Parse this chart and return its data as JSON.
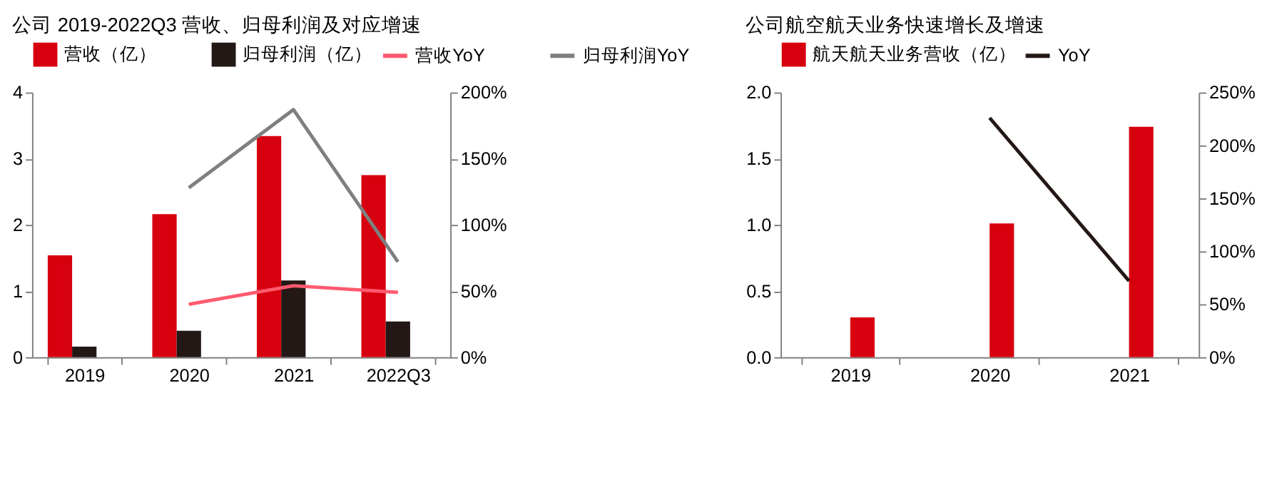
{
  "chart_data": [
    {
      "type": "bar",
      "title": "公司 2019-2022Q3 营收、归母利润及对应增速",
      "categories": [
        "2019",
        "2020",
        "2021",
        "2022Q3"
      ],
      "ylim": [
        0,
        4
      ],
      "yticks": [
        0,
        1,
        2,
        3,
        4
      ],
      "y2lim": [
        0,
        200
      ],
      "y2ticks": [
        {
          "value": 0,
          "label": "0%"
        },
        {
          "value": 50,
          "label": "50%"
        },
        {
          "value": 100,
          "label": "100%"
        },
        {
          "value": 150,
          "label": "150%"
        },
        {
          "value": 200,
          "label": "200%"
        }
      ],
      "legend": "top",
      "grid": false,
      "series": [
        {
          "name": "营收（亿）",
          "color": "#d7000f",
          "values": [
            1.54,
            2.16,
            3.34,
            2.75
          ]
        },
        {
          "name": "归母利润（亿）",
          "color": "#231815",
          "values": [
            0.16,
            0.4,
            1.16,
            0.54
          ]
        },
        {
          "name": "营收YoY",
          "type": "line",
          "axis": "y2",
          "color": "#ff5a6e",
          "values": [
            null,
            40,
            54,
            49
          ]
        },
        {
          "name": "归母利润YoY",
          "type": "line",
          "axis": "y2",
          "color": "#7f7f7f",
          "values": [
            null,
            128,
            187,
            72
          ]
        }
      ]
    },
    {
      "type": "bar",
      "title": "公司航空航天业务快速增长及增速",
      "categories": [
        "2019",
        "2020",
        "2021"
      ],
      "ylim": [
        0,
        2
      ],
      "yticks": [
        {
          "value": 0,
          "label": "0.0"
        },
        {
          "value": 0.5,
          "label": "0.5"
        },
        {
          "value": 1,
          "label": "1.0"
        },
        {
          "value": 1.5,
          "label": "1.5"
        },
        {
          "value": 2,
          "label": "2.0"
        }
      ],
      "y2lim": [
        0,
        250
      ],
      "y2ticks": [
        {
          "value": 0,
          "label": "0%"
        },
        {
          "value": 50,
          "label": "50%"
        },
        {
          "value": 100,
          "label": "100%"
        },
        {
          "value": 150,
          "label": "150%"
        },
        {
          "value": 200,
          "label": "200%"
        },
        {
          "value": 250,
          "label": "250%"
        }
      ],
      "legend": "top",
      "grid": false,
      "series": [
        {
          "name": "航天航天业务营收（亿）",
          "color": "#d7000f",
          "values": [
            0.3,
            1.01,
            1.74
          ]
        },
        {
          "name": "YoY",
          "type": "line",
          "axis": "y2",
          "color": "#231815",
          "values": [
            null,
            226,
            72
          ]
        }
      ]
    }
  ]
}
